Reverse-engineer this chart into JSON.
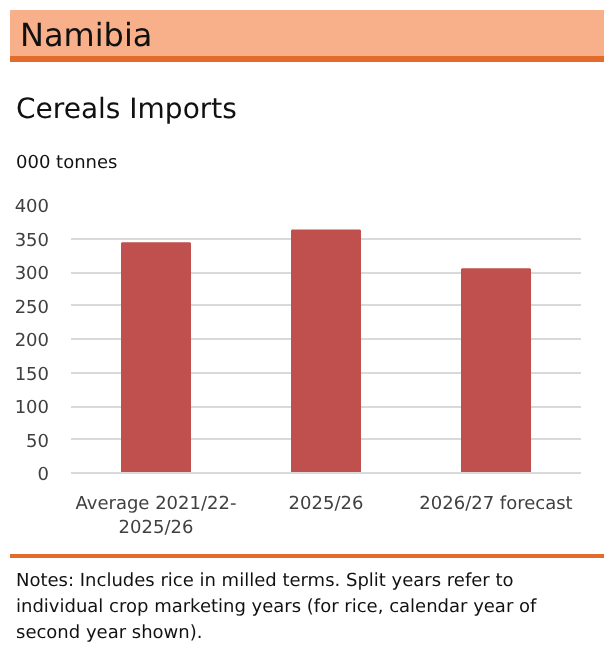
{
  "chart_data": {
    "type": "bar",
    "title": "Namibia",
    "subtitle": "Cereals Imports",
    "ylabel": "000 tonnes",
    "categories": [
      "Average 2021/22-2025/26",
      "2025/26",
      "2026/27 forecast"
    ],
    "values": [
      343,
      362,
      304
    ],
    "color": "#c0504d",
    "ylim": [
      0,
      400
    ],
    "yticks": [
      0,
      50,
      100,
      150,
      200,
      250,
      300,
      350,
      400
    ],
    "grid": "y",
    "annotations": [
      "Notes: Includes rice in milled terms. Split years refer to individual crop marketing years (for rice, calendar year of second year shown)."
    ]
  }
}
